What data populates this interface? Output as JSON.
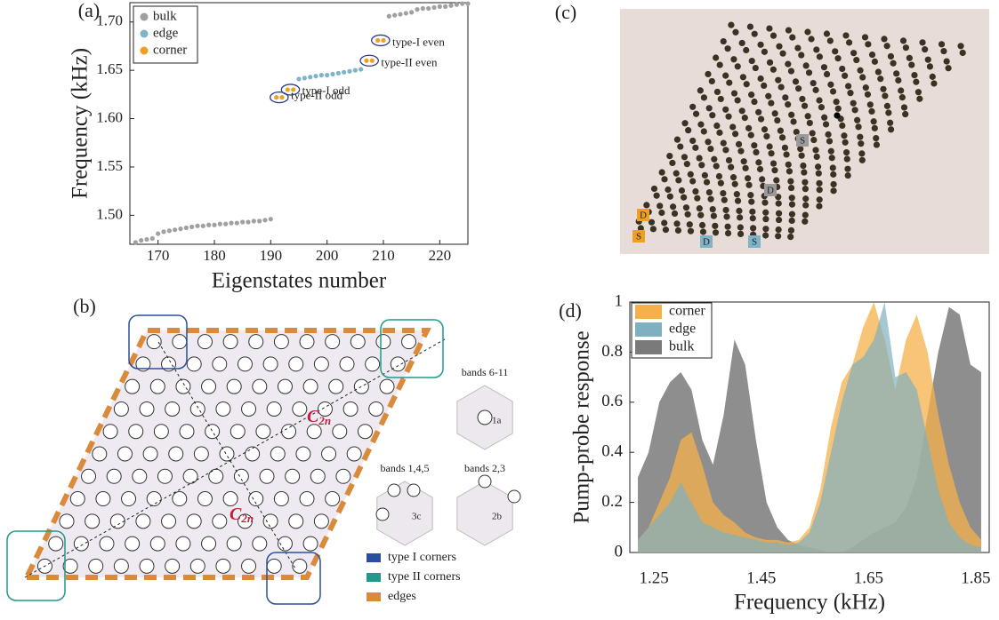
{
  "chart_data": [
    {
      "type": "scatter",
      "panel_label": "(a)",
      "x_label": "Eigenstates number",
      "y_label": "Frequency (kHz)",
      "xlim": [
        165,
        225
      ],
      "ylim": [
        1.47,
        1.72
      ],
      "xticks": [
        170,
        180,
        190,
        200,
        210,
        220
      ],
      "yticks": [
        {
          "value": 1.5,
          "label": "1.50"
        },
        {
          "value": 1.55,
          "label": "1.55"
        },
        {
          "value": 1.6,
          "label": "1.60"
        },
        {
          "value": 1.65,
          "label": "1.65"
        },
        {
          "value": 1.7,
          "label": "1.70"
        }
      ],
      "legend": "upper left",
      "series": [
        {
          "name": "bulk",
          "color": "#a0a0a0",
          "x": [
            166,
            167,
            168,
            169,
            170,
            171,
            172,
            173,
            174,
            175,
            176,
            177,
            178,
            179,
            180,
            181,
            182,
            183,
            184,
            185,
            186,
            187,
            188,
            189,
            190,
            211,
            212,
            213,
            214,
            215,
            216,
            217,
            218,
            219,
            220,
            221,
            222,
            223,
            224,
            225
          ],
          "values": [
            1.472,
            1.474,
            1.475,
            1.476,
            1.481,
            1.483,
            1.484,
            1.485,
            1.486,
            1.487,
            1.488,
            1.489,
            1.489,
            1.49,
            1.49,
            1.491,
            1.491,
            1.492,
            1.492,
            1.493,
            1.493,
            1.494,
            1.494,
            1.495,
            1.496,
            1.706,
            1.707,
            1.708,
            1.709,
            1.71,
            1.713,
            1.714,
            1.714,
            1.715,
            1.716,
            1.716,
            1.717,
            1.718,
            1.719,
            1.719
          ]
        },
        {
          "name": "edge",
          "color": "#7fb3c8",
          "x": [
            195,
            196,
            197,
            198,
            199,
            200,
            201,
            202,
            203,
            204,
            205,
            206
          ],
          "values": [
            1.641,
            1.642,
            1.643,
            1.644,
            1.645,
            1.645,
            1.646,
            1.647,
            1.648,
            1.649,
            1.65,
            1.651
          ]
        },
        {
          "name": "corner",
          "color": "#f0a020",
          "x": [
            191,
            192,
            193,
            194,
            207,
            208,
            209,
            210
          ],
          "values": [
            1.622,
            1.622,
            1.63,
            1.63,
            1.66,
            1.66,
            1.681,
            1.681
          ]
        }
      ],
      "annotations": [
        "type-II odd",
        "type-I odd",
        "type-II even",
        "type-I even"
      ]
    },
    {
      "type": "area",
      "panel_label": "(d)",
      "x_label": "Frequency (kHz)",
      "y_label": "Pump-probe response",
      "xlim": [
        1.205,
        1.875
      ],
      "ylim": [
        0,
        1
      ],
      "xticks": [
        1.25,
        1.45,
        1.65,
        1.85
      ],
      "yticks": [
        0,
        0.2,
        0.4,
        0.6,
        0.8,
        1
      ],
      "legend": "upper left",
      "x": [
        1.22,
        1.24,
        1.26,
        1.28,
        1.3,
        1.32,
        1.34,
        1.36,
        1.38,
        1.4,
        1.42,
        1.44,
        1.46,
        1.48,
        1.5,
        1.52,
        1.54,
        1.56,
        1.58,
        1.6,
        1.62,
        1.64,
        1.66,
        1.68,
        1.7,
        1.72,
        1.74,
        1.76,
        1.78,
        1.8,
        1.82,
        1.84,
        1.86
      ],
      "series": [
        {
          "name": "bulk",
          "color": "#7a7a7a",
          "values": [
            0.3,
            0.4,
            0.6,
            0.68,
            0.72,
            0.65,
            0.45,
            0.35,
            0.55,
            0.85,
            0.75,
            0.45,
            0.2,
            0.1,
            0.05,
            0.03,
            0.02,
            0.01,
            0,
            0,
            0.02,
            0.05,
            0.08,
            0.1,
            0.12,
            0.18,
            0.3,
            0.55,
            0.8,
            0.98,
            0.95,
            0.75,
            0.72
          ]
        },
        {
          "name": "corner",
          "color": "#f5b04a",
          "values": [
            0.05,
            0.1,
            0.2,
            0.3,
            0.45,
            0.48,
            0.35,
            0.2,
            0.15,
            0.12,
            0.08,
            0.06,
            0.05,
            0.05,
            0.04,
            0.05,
            0.1,
            0.25,
            0.5,
            0.68,
            0.75,
            0.9,
            1,
            0.85,
            0.65,
            0.85,
            0.95,
            0.8,
            0.55,
            0.35,
            0.2,
            0.1,
            0.05
          ]
        },
        {
          "name": "edge",
          "color": "#7fb0bf",
          "values": [
            0.05,
            0.1,
            0.15,
            0.2,
            0.28,
            0.2,
            0.12,
            0.1,
            0.08,
            0.07,
            0.06,
            0.05,
            0.04,
            0.04,
            0.03,
            0.04,
            0.08,
            0.2,
            0.4,
            0.6,
            0.75,
            0.78,
            0.85,
            1,
            0.7,
            0.72,
            0.65,
            0.45,
            0.25,
            0.12,
            0.06,
            0.03,
            0.02
          ]
        }
      ]
    }
  ],
  "panel_b": {
    "panel_label": "(b)",
    "axis_labels": [
      {
        "symbol": "C",
        "subscript": "2n"
      },
      {
        "symbol": "C",
        "subscript": "2n"
      }
    ],
    "unit_cells": [
      {
        "title": "bands 6-11",
        "site": "1a"
      },
      {
        "title": "bands 1,4,5",
        "site": "3c"
      },
      {
        "title": "bands 2,3",
        "site": "2b"
      }
    ],
    "legend": [
      {
        "label": "type I  corners",
        "color": "#2b4f9e"
      },
      {
        "label": "type II  corners",
        "color": "#1f9a8a"
      },
      {
        "label": "edges",
        "color": "#d98a3a"
      }
    ]
  },
  "panel_c": {
    "panel_label": "(c)",
    "markers": [
      {
        "label": "D",
        "color": "#f0a020"
      },
      {
        "label": "S",
        "color": "#f0a020"
      },
      {
        "label": "D",
        "color": "#7fb3c8"
      },
      {
        "label": "S",
        "color": "#7fb3c8"
      },
      {
        "label": "D",
        "color": "#9a9a9a"
      },
      {
        "label": "S",
        "color": "#9a9a9a"
      }
    ]
  }
}
